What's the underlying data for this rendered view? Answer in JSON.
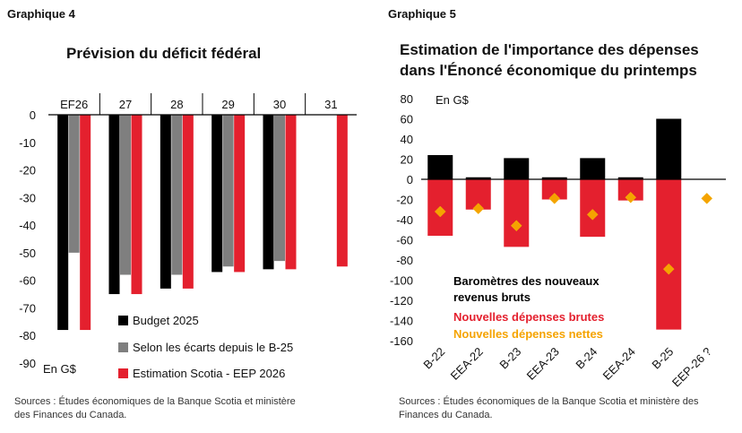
{
  "chart_data": [
    {
      "type": "bar",
      "figure_label": "Graphique 4",
      "title": "Prévision du déficit fédéral",
      "unit_label": "En G$",
      "categories": [
        "EF26",
        "27",
        "28",
        "29",
        "30",
        "31"
      ],
      "ylim": [
        -90,
        0
      ],
      "yticks": [
        0,
        -10,
        -20,
        -30,
        -40,
        -50,
        -60,
        -70,
        -80,
        -90
      ],
      "x_axis_position": "top",
      "legend_position": "bottom-right",
      "series": [
        {
          "name": "Budget 2025",
          "color": "#000000",
          "values": [
            -78,
            -65,
            -63,
            -57,
            -56,
            null
          ]
        },
        {
          "name": "Selon les écarts depuis le B-25",
          "color": "#7f7f7f",
          "values": [
            -50,
            -58,
            -58,
            -55,
            -53,
            null
          ]
        },
        {
          "name": "Estimation Scotia - EEP 2026",
          "color": "#e4202e",
          "values": [
            -78,
            -65,
            -63,
            -57,
            -56,
            -55
          ]
        }
      ],
      "source": "Sources : Études économiques de la Banque Scotia et ministère des Finances du Canada."
    },
    {
      "type": "bar",
      "figure_label": "Graphique 5",
      "title": "Estimation de l'importance des dépenses dans l'Énoncé économique du printemps",
      "unit_label": "En G$",
      "categories": [
        "B-22",
        "EEA-22",
        "B-23",
        "EEA-23",
        "B-24",
        "EEA-24",
        "B-25",
        "EEP-26 ?"
      ],
      "ylim": [
        -160,
        80
      ],
      "yticks": [
        80,
        60,
        40,
        20,
        0,
        -20,
        -40,
        -60,
        -80,
        -100,
        -120,
        -140,
        -160
      ],
      "legend_position": "bottom-left",
      "series": [
        {
          "name": "Baromètres des nouveaux revenus bruts",
          "color": "#000000",
          "values": [
            24,
            2,
            21,
            2,
            21,
            2,
            60,
            null
          ]
        },
        {
          "name": "Nouvelles dépenses brutes",
          "color": "#e4202e",
          "values": [
            -56,
            -30,
            -67,
            -20,
            -57,
            -21,
            -149,
            null
          ]
        },
        {
          "name": "Nouvelles dépenses nettes",
          "color": "#f5a300",
          "marker": "diamond",
          "values": [
            -32,
            -29,
            -46,
            -19,
            -35,
            -18,
            -89,
            -19
          ]
        }
      ],
      "source": "Sources : Études économiques de la Banque Scotia et ministère des Finances du Canada."
    }
  ]
}
